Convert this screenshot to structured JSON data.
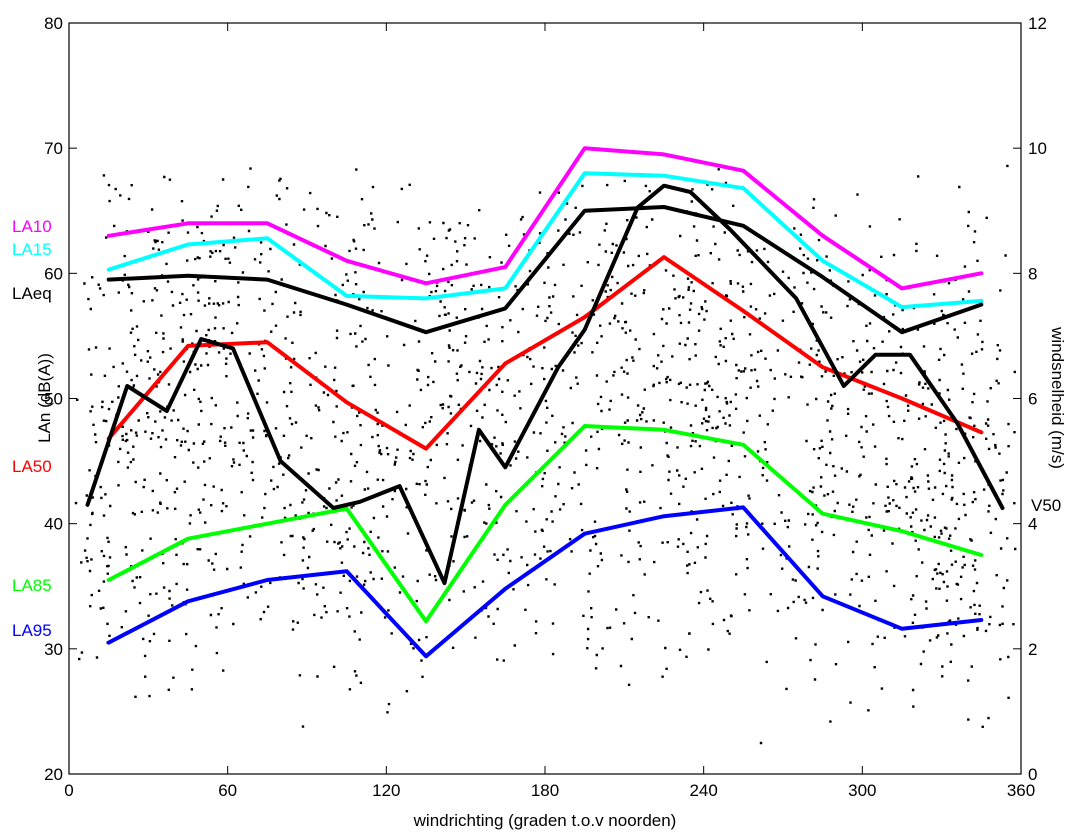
{
  "chart_data": {
    "type": "line",
    "title": "",
    "xlabel": "windrichting (graden t.o.v noorden)",
    "ylabel": "LAn (dB(A))",
    "y2label": "windsnelheid (m/s)",
    "xlim": [
      0,
      360
    ],
    "ylim": [
      20,
      80
    ],
    "y2lim": [
      0,
      12
    ],
    "xticks": [
      "0",
      "60",
      "120",
      "180",
      "240",
      "300",
      "360"
    ],
    "yticks": [
      "20",
      "30",
      "40",
      "50",
      "60",
      "70",
      "80"
    ],
    "y2ticks": [
      "0",
      "2",
      "4",
      "6",
      "8",
      "10",
      "12"
    ],
    "grid": false,
    "legend": "inline labels at left and right edges",
    "series": [
      {
        "name": "LA10",
        "color": "#ff00ff",
        "axis": "left",
        "x": [
          15,
          45,
          75,
          105,
          135,
          165,
          195,
          225,
          255,
          285,
          315,
          345
        ],
        "y": [
          63,
          64,
          64,
          61,
          59.2,
          60.5,
          70,
          69.5,
          68.2,
          63,
          58.8,
          60
        ]
      },
      {
        "name": "LA15",
        "color": "#00ffff",
        "axis": "left",
        "x": [
          15,
          45,
          75,
          105,
          135,
          165,
          195,
          225,
          255,
          285,
          315,
          345
        ],
        "y": [
          60.3,
          62.3,
          62.8,
          58.2,
          58,
          58.8,
          68,
          67.8,
          66.8,
          61,
          57.3,
          57.8
        ]
      },
      {
        "name": "LAeq",
        "color": "#000000",
        "axis": "left",
        "x": [
          15,
          45,
          75,
          105,
          135,
          165,
          195,
          225,
          255,
          285,
          315,
          345
        ],
        "y": [
          59.5,
          59.8,
          59.5,
          57.5,
          55.3,
          57.2,
          65,
          65.3,
          63.8,
          59.7,
          55.3,
          57.5
        ]
      },
      {
        "name": "LA50",
        "color": "#ff0000",
        "axis": "left",
        "x": [
          15,
          45,
          75,
          105,
          135,
          165,
          195,
          225,
          255,
          285,
          315,
          345
        ],
        "y": [
          46.8,
          54.2,
          54.5,
          49.7,
          46,
          52.8,
          56.5,
          61.3,
          57,
          52.5,
          50,
          47.3
        ]
      },
      {
        "name": "LA85",
        "color": "#00ff00",
        "axis": "left",
        "x": [
          15,
          45,
          75,
          105,
          135,
          165,
          195,
          225,
          255,
          285,
          315,
          345
        ],
        "y": [
          35.5,
          38.8,
          40,
          41.2,
          32.2,
          41.5,
          47.8,
          47.5,
          46.3,
          40.8,
          39.4,
          37.5
        ]
      },
      {
        "name": "LA95",
        "color": "#0000ff",
        "axis": "left",
        "x": [
          15,
          45,
          75,
          105,
          135,
          165,
          195,
          225,
          255,
          285,
          315,
          345
        ],
        "y": [
          30.5,
          33.8,
          35.5,
          36.2,
          29.4,
          34.8,
          39.2,
          40.6,
          41.3,
          34.2,
          31.6,
          32.3
        ]
      },
      {
        "name": "V50",
        "color": "#000000",
        "axis": "right",
        "x": [
          7,
          22,
          37,
          50,
          62,
          80,
          100,
          110,
          125,
          142,
          155,
          165,
          185,
          195,
          215,
          225,
          235,
          250,
          275,
          293,
          305,
          318,
          336,
          353
        ],
        "y": [
          4.3,
          6.2,
          5.8,
          6.95,
          6.8,
          5,
          4.25,
          4.35,
          4.6,
          3.05,
          5.5,
          4.9,
          6.5,
          7.1,
          9.05,
          9.4,
          9.3,
          8.7,
          7.6,
          6.2,
          6.7,
          6.7,
          5.6,
          4.25
        ]
      }
    ],
    "labels": {
      "LA10": "LA10",
      "LA15": "LA15",
      "LAeq": "LAeq",
      "LA50": "LA50",
      "LA85": "LA85",
      "LA95": "LA95",
      "V50": "V50"
    }
  }
}
